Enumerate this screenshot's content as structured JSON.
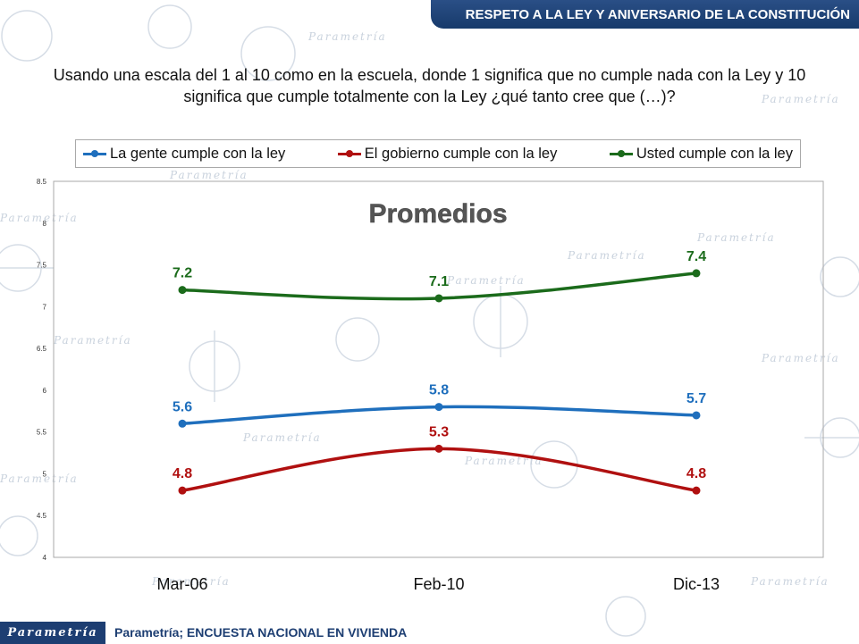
{
  "header": {
    "title": "RESPETO A LA LEY Y ANIVERSARIO DE LA CONSTITUCIÓN"
  },
  "question": "Usando una escala del 1 al 10 como en la escuela, donde 1 significa que no cumple nada con la Ley y 10 significa que cumple totalmente con la Ley ¿qué tanto cree que (…)?",
  "watermark": "Parametría",
  "footer": {
    "logo": "Parametría",
    "source": "Parametría; ENCUESTA NACIONAL  EN VIVIENDA"
  },
  "chart_data": {
    "type": "line",
    "title": "Promedios",
    "categories": [
      "Mar-06",
      "Feb-10",
      "Dic-13"
    ],
    "ylim": [
      4,
      8.5
    ],
    "yticks": [
      "4",
      "4.5",
      "5",
      "5.5",
      "6",
      "6.5",
      "7",
      "7.5",
      "8",
      "8.5"
    ],
    "grid": false,
    "legend_position": "top",
    "series": [
      {
        "name": "La gente cumple con la ley",
        "color": "#1f6fbd",
        "values": [
          5.6,
          5.8,
          5.7
        ]
      },
      {
        "name": "El gobierno cumple con la ley",
        "color": "#b01010",
        "values": [
          4.8,
          5.3,
          4.8
        ]
      },
      {
        "name": "Usted cumple con la ley",
        "color": "#1b6b1b",
        "values": [
          7.2,
          7.1,
          7.4
        ]
      }
    ]
  }
}
